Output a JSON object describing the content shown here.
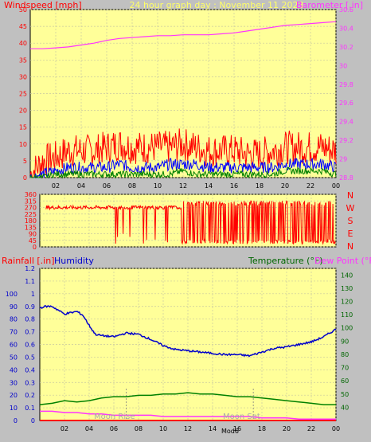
{
  "header": {
    "windspeed_label": "Windspeed [mph]",
    "graph_title": "24 hour graph day : November 11 2023",
    "barometer_label": "Barometer [.in]"
  },
  "middle": {
    "compass_labels": [
      "N",
      "W",
      "S",
      "E",
      "N"
    ]
  },
  "bottom": {
    "rainfall_label": "Rainfall [.in]",
    "humidity_label": "Humidity",
    "temperature_label": "Temperature (°F)",
    "dewpoint_label": "Dew Point (°F)",
    "moon_rise_label": "Moon Rise",
    "moon_set_label": "Moon Set",
    "mod_label": "Mod6"
  },
  "colors": {
    "background": "#c0c0c0",
    "plot_bg": "#ffff99",
    "wind_gust": "#ff0000",
    "wind_avg": "#0000ff",
    "wind_min": "#008000",
    "barometer": "#ff33ff",
    "direction": "#ff0000",
    "humidity": "#0000cc",
    "temperature": "#008000",
    "dewpoint": "#ff33ff",
    "rainfall": "#ff0000"
  },
  "chart_data": [
    {
      "type": "line",
      "title": "24 hour graph day : November 11 2023",
      "x_tick_labels": [
        "02",
        "04",
        "06",
        "08",
        "10",
        "12",
        "14",
        "16",
        "18",
        "20",
        "22",
        "00"
      ],
      "xlim": [
        0,
        24
      ],
      "ylabel": "Windspeed [mph]",
      "ylim": [
        0,
        50
      ],
      "y_ticks": [
        0,
        5,
        10,
        15,
        20,
        25,
        30,
        35,
        40,
        45,
        50
      ],
      "y2label": "Barometer [.in]",
      "y2lim": [
        28.8,
        30.6
      ],
      "y2_ticks": [
        "28.8",
        "29",
        "29.2",
        "29.4",
        "29.6",
        "29.8",
        "30",
        "30.2",
        "30.4",
        "30.6"
      ],
      "grid": true,
      "series": [
        {
          "axis": "y2",
          "x": [
            0,
            1,
            2,
            3,
            4,
            5,
            6,
            7,
            8,
            9,
            10,
            11,
            12,
            13,
            14,
            15,
            16,
            17,
            18,
            19,
            20,
            21,
            22,
            23,
            24
          ],
          "values": [
            30.18,
            30.18,
            30.19,
            30.2,
            30.22,
            30.24,
            30.27,
            30.29,
            30.3,
            30.31,
            30.32,
            30.32,
            30.33,
            30.33,
            30.33,
            30.34,
            30.35,
            30.37,
            30.39,
            30.41,
            30.43,
            30.44,
            30.45,
            30.46,
            30.47
          ]
        },
        {
          "x": [
            0,
            1,
            2,
            3,
            4,
            5,
            6,
            7,
            8,
            9,
            10,
            11,
            12,
            13,
            14,
            15,
            16,
            17,
            18,
            19,
            20,
            21,
            22,
            23,
            24
          ],
          "values": [
            1,
            5,
            6,
            8,
            8,
            8,
            9,
            10,
            9,
            9,
            9,
            9,
            10,
            9,
            8,
            8,
            8,
            7,
            7,
            8,
            9,
            9,
            9,
            9,
            8
          ]
        },
        {
          "x": [
            0,
            1,
            2,
            3,
            4,
            5,
            6,
            7,
            8,
            9,
            10,
            11,
            12,
            13,
            14,
            15,
            16,
            17,
            18,
            19,
            20,
            21,
            22,
            23,
            24
          ],
          "values": [
            0,
            1,
            2,
            3,
            3,
            3,
            3,
            4,
            3,
            3,
            3,
            4,
            4,
            4,
            3,
            3,
            3,
            3,
            3,
            3,
            4,
            4,
            4,
            4,
            3
          ]
        },
        {
          "x": [
            0,
            1,
            2,
            3,
            4,
            5,
            6,
            7,
            8,
            9,
            10,
            11,
            12,
            13,
            14,
            15,
            16,
            17,
            18,
            19,
            20,
            21,
            22,
            23,
            24
          ],
          "values": [
            0,
            0,
            1,
            1,
            1,
            1,
            1,
            1,
            1,
            1,
            1,
            1,
            2,
            1,
            1,
            1,
            1,
            1,
            1,
            1,
            2,
            2,
            2,
            2,
            1
          ]
        }
      ]
    },
    {
      "type": "line",
      "ylabel": "",
      "ylim": [
        0,
        360
      ],
      "y_ticks": [
        0,
        45,
        90,
        135,
        180,
        225,
        270,
        315,
        360
      ],
      "xlim": [
        0,
        24
      ],
      "grid": true,
      "series": [
        {
          "x": [
            0.5,
            1,
            2,
            3,
            4,
            5,
            6,
            7,
            8,
            9,
            10,
            11,
            12,
            13,
            14,
            15,
            16,
            17,
            18,
            19,
            20,
            21,
            22,
            23,
            24
          ],
          "values": [
            260,
            270,
            280,
            270,
            280,
            300,
            280,
            230,
            270,
            150,
            250,
            60,
            280,
            40,
            300,
            30,
            280,
            20,
            300,
            40,
            280,
            30,
            300,
            20,
            280
          ]
        }
      ]
    },
    {
      "type": "line",
      "x_tick_labels": [
        "02",
        "04",
        "06",
        "08",
        "10",
        "12",
        "14",
        "16",
        "18",
        "20",
        "22",
        "00"
      ],
      "xlim": [
        0,
        24
      ],
      "ylabel": "Rainfall [.in]",
      "ylim": [
        0,
        1.2
      ],
      "y_ticks": [
        "0",
        "0.1",
        "0.2",
        "0.3",
        "0.4",
        "0.5",
        "0.6",
        "0.7",
        "0.8",
        "0.9",
        "1",
        "1.1",
        "1.2"
      ],
      "y_humidity_ticks": [
        0,
        10,
        20,
        30,
        40,
        50,
        60,
        70,
        80,
        90,
        100
      ],
      "y2label": "Temperature (°F) Dew Point (°F)",
      "y2lim": [
        30,
        145
      ],
      "y2_ticks": [
        40,
        50,
        60,
        70,
        80,
        90,
        100,
        110,
        120,
        130,
        140
      ],
      "grid": true,
      "series": [
        {
          "name": "Humidity",
          "axis": "humidity",
          "x": [
            0,
            0.5,
            1,
            1.5,
            2,
            2.5,
            3,
            3.5,
            4,
            4.5,
            5,
            6,
            7,
            8,
            9,
            10,
            11,
            12,
            13,
            14,
            15,
            16,
            17,
            18,
            19,
            20,
            21,
            22,
            23,
            24
          ],
          "values": [
            89,
            90,
            90,
            87,
            84,
            85,
            86,
            83,
            75,
            68,
            67,
            66,
            69,
            68,
            64,
            59,
            56,
            55,
            54,
            53,
            52,
            52,
            51,
            54,
            57,
            58,
            60,
            62,
            66,
            72
          ]
        },
        {
          "name": "Temperature (°F)",
          "axis": "y2",
          "x": [
            0,
            1,
            2,
            3,
            4,
            5,
            6,
            7,
            8,
            9,
            10,
            11,
            12,
            13,
            14,
            15,
            16,
            17,
            18,
            19,
            20,
            21,
            22,
            23,
            24
          ],
          "values": [
            42,
            43,
            45,
            44,
            45,
            47,
            48,
            48,
            49,
            49,
            50,
            50,
            51,
            50,
            50,
            49,
            48,
            48,
            47,
            46,
            45,
            44,
            43,
            42,
            42
          ]
        },
        {
          "name": "Dew Point (°F)",
          "axis": "y2",
          "x": [
            0,
            1,
            2,
            3,
            4,
            5,
            6,
            7,
            8,
            9,
            10,
            11,
            12,
            13,
            14,
            15,
            16,
            17,
            18,
            19,
            20,
            21,
            22,
            23,
            24
          ],
          "values": [
            37,
            37,
            36,
            36,
            35,
            35,
            34,
            34,
            34,
            34,
            33,
            33,
            33,
            33,
            33,
            33,
            33,
            33,
            32,
            32,
            32,
            31,
            31,
            31,
            31
          ]
        },
        {
          "name": "Rainfall [.in]",
          "x": [
            0,
            24
          ],
          "values": [
            0,
            0
          ]
        }
      ]
    }
  ]
}
